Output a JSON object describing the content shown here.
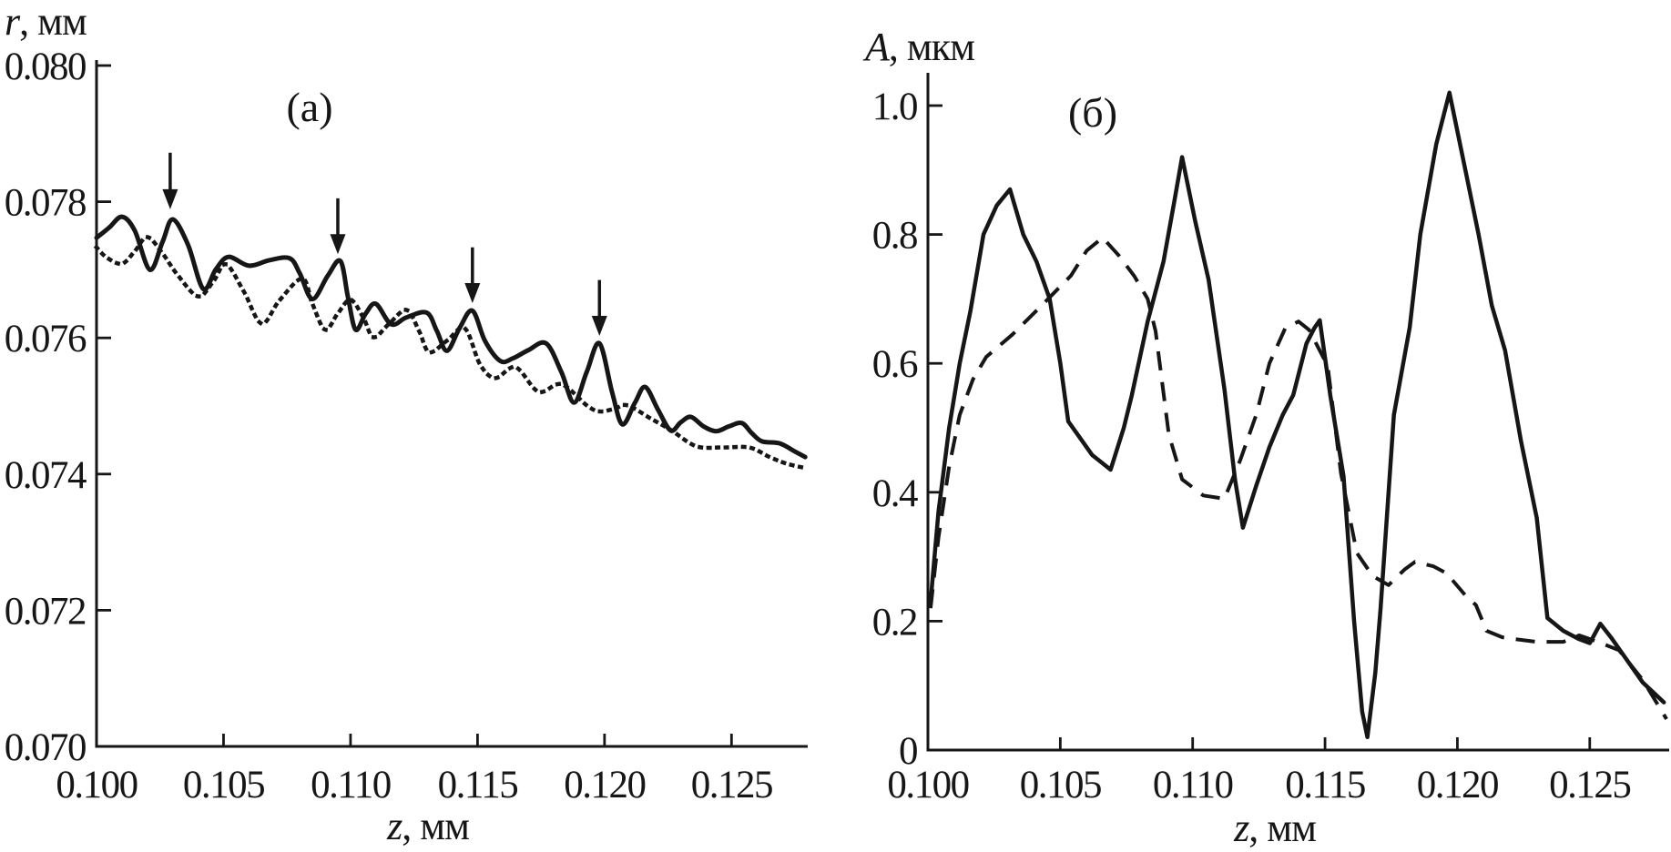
{
  "figure": {
    "background": "#ffffff",
    "ink_color": "#161616"
  },
  "chart_data": [
    {
      "id": "a",
      "type": "line",
      "panel_label": "(а)",
      "xlabel": {
        "variable": "z",
        "unit": ", мм"
      },
      "ylabel": {
        "variable": "r",
        "unit": ", мм"
      },
      "xlim": [
        0.1,
        0.128
      ],
      "ylim": [
        0.07,
        0.08
      ],
      "grid": false,
      "legend": "none",
      "x_ticks": [
        {
          "value": 0.1,
          "label": "0.100"
        },
        {
          "value": 0.105,
          "label": "0.105"
        },
        {
          "value": 0.11,
          "label": "0.110"
        },
        {
          "value": 0.115,
          "label": "0.115"
        },
        {
          "value": 0.12,
          "label": "0.120"
        },
        {
          "value": 0.125,
          "label": "0.125"
        }
      ],
      "y_ticks": [
        {
          "value": 0.08,
          "label": "0.080"
        },
        {
          "value": 0.078,
          "label": "0.078"
        },
        {
          "value": 0.076,
          "label": "0.076"
        },
        {
          "value": 0.074,
          "label": "0.074"
        },
        {
          "value": 0.072,
          "label": "0.072"
        },
        {
          "value": 0.07,
          "label": "0.070"
        }
      ],
      "arrows": [
        {
          "x": 0.1029,
          "tip": 0.07789,
          "tail": 0.07872
        },
        {
          "x": 0.1095,
          "tip": 0.07723,
          "tail": 0.07805
        },
        {
          "x": 0.1148,
          "tip": 0.07651,
          "tail": 0.07733
        },
        {
          "x": 0.1198,
          "tip": 0.07603,
          "tail": 0.07685
        }
      ],
      "series": [
        {
          "name": "solid",
          "style": "solid",
          "points": [
            [
              0.1,
              0.07747
            ],
            [
              0.1005,
              0.07762
            ],
            [
              0.101,
              0.07778
            ],
            [
              0.1015,
              0.07758
            ],
            [
              0.1021,
              0.077
            ],
            [
              0.1026,
              0.07741
            ],
            [
              0.103,
              0.07774
            ],
            [
              0.1036,
              0.07737
            ],
            [
              0.1042,
              0.07672
            ],
            [
              0.1047,
              0.07701
            ],
            [
              0.1052,
              0.07719
            ],
            [
              0.106,
              0.07706
            ],
            [
              0.1068,
              0.07714
            ],
            [
              0.1076,
              0.07717
            ],
            [
              0.108,
              0.07695
            ],
            [
              0.1085,
              0.07657
            ],
            [
              0.1091,
              0.07691
            ],
            [
              0.1096,
              0.07713
            ],
            [
              0.1099,
              0.0766
            ],
            [
              0.1102,
              0.07612
            ],
            [
              0.1106,
              0.07636
            ],
            [
              0.111,
              0.0765
            ],
            [
              0.1116,
              0.0762
            ],
            [
              0.1122,
              0.0763
            ],
            [
              0.113,
              0.07637
            ],
            [
              0.1134,
              0.0761
            ],
            [
              0.1138,
              0.07581
            ],
            [
              0.1143,
              0.07615
            ],
            [
              0.1148,
              0.0764
            ],
            [
              0.1153,
              0.07595
            ],
            [
              0.1159,
              0.07566
            ],
            [
              0.1164,
              0.0757
            ],
            [
              0.117,
              0.07582
            ],
            [
              0.1177,
              0.07592
            ],
            [
              0.1183,
              0.0755
            ],
            [
              0.1188,
              0.07505
            ],
            [
              0.1193,
              0.0755
            ],
            [
              0.1198,
              0.07592
            ],
            [
              0.1203,
              0.0752
            ],
            [
              0.1207,
              0.07473
            ],
            [
              0.1212,
              0.07505
            ],
            [
              0.1216,
              0.07528
            ],
            [
              0.1221,
              0.07495
            ],
            [
              0.1226,
              0.07464
            ],
            [
              0.123,
              0.07476
            ],
            [
              0.1234,
              0.07484
            ],
            [
              0.1239,
              0.0747
            ],
            [
              0.1244,
              0.07463
            ],
            [
              0.1249,
              0.0747
            ],
            [
              0.1254,
              0.07475
            ],
            [
              0.1258,
              0.0746
            ],
            [
              0.1262,
              0.07448
            ],
            [
              0.1269,
              0.07445
            ],
            [
              0.1275,
              0.07433
            ],
            [
              0.1279,
              0.07425
            ]
          ]
        },
        {
          "name": "dotted",
          "style": "dotted",
          "points": [
            [
              0.1,
              0.07733
            ],
            [
              0.1004,
              0.07718
            ],
            [
              0.101,
              0.07709
            ],
            [
              0.1015,
              0.07727
            ],
            [
              0.102,
              0.07748
            ],
            [
              0.1026,
              0.07724
            ],
            [
              0.1032,
              0.07692
            ],
            [
              0.104,
              0.07661
            ],
            [
              0.1046,
              0.07683
            ],
            [
              0.1051,
              0.07708
            ],
            [
              0.1058,
              0.07668
            ],
            [
              0.1065,
              0.07621
            ],
            [
              0.1072,
              0.07655
            ],
            [
              0.1081,
              0.07687
            ],
            [
              0.1085,
              0.0765
            ],
            [
              0.109,
              0.07612
            ],
            [
              0.1095,
              0.07636
            ],
            [
              0.11,
              0.07656
            ],
            [
              0.1105,
              0.0763
            ],
            [
              0.1109,
              0.07601
            ],
            [
              0.1115,
              0.0762
            ],
            [
              0.1122,
              0.07641
            ],
            [
              0.1127,
              0.0761
            ],
            [
              0.1131,
              0.07579
            ],
            [
              0.1138,
              0.07596
            ],
            [
              0.1145,
              0.07614
            ],
            [
              0.1151,
              0.07561
            ],
            [
              0.1157,
              0.07541
            ],
            [
              0.1165,
              0.07557
            ],
            [
              0.1174,
              0.07521
            ],
            [
              0.1183,
              0.07532
            ],
            [
              0.1193,
              0.07501
            ],
            [
              0.1198,
              0.07492
            ],
            [
              0.1204,
              0.07496
            ],
            [
              0.1209,
              0.07501
            ],
            [
              0.1218,
              0.07482
            ],
            [
              0.1226,
              0.07465
            ],
            [
              0.1236,
              0.07441
            ],
            [
              0.1246,
              0.07439
            ],
            [
              0.1257,
              0.07439
            ],
            [
              0.1265,
              0.07425
            ],
            [
              0.1272,
              0.07415
            ],
            [
              0.128,
              0.07408
            ]
          ]
        }
      ]
    },
    {
      "id": "b",
      "type": "line",
      "panel_label": "(б)",
      "xlabel": {
        "variable": "z",
        "unit": ", мм"
      },
      "ylabel": {
        "variable": "A",
        "unit": ", мкм"
      },
      "xlim": [
        0.1,
        0.128
      ],
      "ylim": [
        0,
        1.0
      ],
      "grid": false,
      "legend": "none",
      "x_ticks": [
        {
          "value": 0.1,
          "label": "0.100"
        },
        {
          "value": 0.105,
          "label": "0.105"
        },
        {
          "value": 0.11,
          "label": "0.110"
        },
        {
          "value": 0.115,
          "label": "0.115"
        },
        {
          "value": 0.12,
          "label": "0.120"
        },
        {
          "value": 0.125,
          "label": "0.125"
        }
      ],
      "y_ticks": [
        {
          "value": 1.0,
          "label": "1.0"
        },
        {
          "value": 0.8,
          "label": "0.8"
        },
        {
          "value": 0.6,
          "label": "0.6"
        },
        {
          "value": 0.4,
          "label": "0.4"
        },
        {
          "value": 0.2,
          "label": "0.2"
        },
        {
          "value": 0,
          "label": "0"
        }
      ],
      "arrows": [],
      "series": [
        {
          "name": "solid",
          "style": "solid",
          "points": [
            [
              0.1001,
              0.23
            ],
            [
              0.1004,
              0.37
            ],
            [
              0.1008,
              0.5
            ],
            [
              0.1012,
              0.6
            ],
            [
              0.1016,
              0.68
            ],
            [
              0.1021,
              0.8
            ],
            [
              0.1026,
              0.845
            ],
            [
              0.1031,
              0.87
            ],
            [
              0.1036,
              0.8
            ],
            [
              0.1041,
              0.758
            ],
            [
              0.1046,
              0.7
            ],
            [
              0.105,
              0.6
            ],
            [
              0.1053,
              0.51
            ],
            [
              0.1057,
              0.487
            ],
            [
              0.1062,
              0.458
            ],
            [
              0.1069,
              0.435
            ],
            [
              0.1074,
              0.5
            ],
            [
              0.1077,
              0.55
            ],
            [
              0.1083,
              0.665
            ],
            [
              0.1089,
              0.758
            ],
            [
              0.1093,
              0.85
            ],
            [
              0.1096,
              0.92
            ],
            [
              0.1101,
              0.82
            ],
            [
              0.1106,
              0.73
            ],
            [
              0.1112,
              0.56
            ],
            [
              0.1116,
              0.42
            ],
            [
              0.1119,
              0.345
            ],
            [
              0.1124,
              0.41
            ],
            [
              0.1129,
              0.47
            ],
            [
              0.1134,
              0.52
            ],
            [
              0.1138,
              0.551
            ],
            [
              0.1143,
              0.631
            ],
            [
              0.1146,
              0.655
            ],
            [
              0.1148,
              0.667
            ],
            [
              0.1152,
              0.55
            ],
            [
              0.1157,
              0.425
            ],
            [
              0.1161,
              0.2
            ],
            [
              0.1164,
              0.06
            ],
            [
              0.1166,
              0.02
            ],
            [
              0.1169,
              0.12
            ],
            [
              0.1171,
              0.22
            ],
            [
              0.1176,
              0.52
            ],
            [
              0.1182,
              0.656
            ],
            [
              0.1186,
              0.8
            ],
            [
              0.1192,
              0.94
            ],
            [
              0.1197,
              1.02
            ],
            [
              0.1203,
              0.9
            ],
            [
              0.1208,
              0.8
            ],
            [
              0.1213,
              0.69
            ],
            [
              0.1218,
              0.62
            ],
            [
              0.1224,
              0.48
            ],
            [
              0.123,
              0.36
            ],
            [
              0.1234,
              0.205
            ],
            [
              0.124,
              0.185
            ],
            [
              0.1246,
              0.172
            ],
            [
              0.125,
              0.166
            ],
            [
              0.1254,
              0.196
            ],
            [
              0.1258,
              0.175
            ],
            [
              0.1264,
              0.14
            ],
            [
              0.127,
              0.105
            ],
            [
              0.1278,
              0.074
            ]
          ]
        },
        {
          "name": "dashed",
          "style": "dashed",
          "points": [
            [
              0.1001,
              0.22
            ],
            [
              0.1004,
              0.33
            ],
            [
              0.1008,
              0.44
            ],
            [
              0.1012,
              0.52
            ],
            [
              0.1017,
              0.575
            ],
            [
              0.1022,
              0.61
            ],
            [
              0.1032,
              0.645
            ],
            [
              0.1043,
              0.69
            ],
            [
              0.1054,
              0.736
            ],
            [
              0.106,
              0.775
            ],
            [
              0.1066,
              0.795
            ],
            [
              0.1072,
              0.768
            ],
            [
              0.1078,
              0.735
            ],
            [
              0.1083,
              0.7
            ],
            [
              0.1086,
              0.65
            ],
            [
              0.1091,
              0.49
            ],
            [
              0.1096,
              0.42
            ],
            [
              0.1104,
              0.395
            ],
            [
              0.1112,
              0.39
            ],
            [
              0.1118,
              0.45
            ],
            [
              0.1124,
              0.52
            ],
            [
              0.1129,
              0.6
            ],
            [
              0.1135,
              0.655
            ],
            [
              0.114,
              0.665
            ],
            [
              0.1144,
              0.652
            ],
            [
              0.1151,
              0.596
            ],
            [
              0.1156,
              0.43
            ],
            [
              0.1162,
              0.306
            ],
            [
              0.1168,
              0.27
            ],
            [
              0.1174,
              0.256
            ],
            [
              0.118,
              0.28
            ],
            [
              0.1184,
              0.292
            ],
            [
              0.1191,
              0.285
            ],
            [
              0.1196,
              0.274
            ],
            [
              0.1203,
              0.24
            ],
            [
              0.1207,
              0.225
            ],
            [
              0.1211,
              0.185
            ],
            [
              0.1217,
              0.175
            ],
            [
              0.1222,
              0.172
            ],
            [
              0.123,
              0.168
            ],
            [
              0.124,
              0.168
            ],
            [
              0.1246,
              0.178
            ],
            [
              0.1253,
              0.168
            ],
            [
              0.1261,
              0.155
            ],
            [
              0.127,
              0.109
            ],
            [
              0.1279,
              0.048
            ]
          ]
        }
      ]
    }
  ]
}
